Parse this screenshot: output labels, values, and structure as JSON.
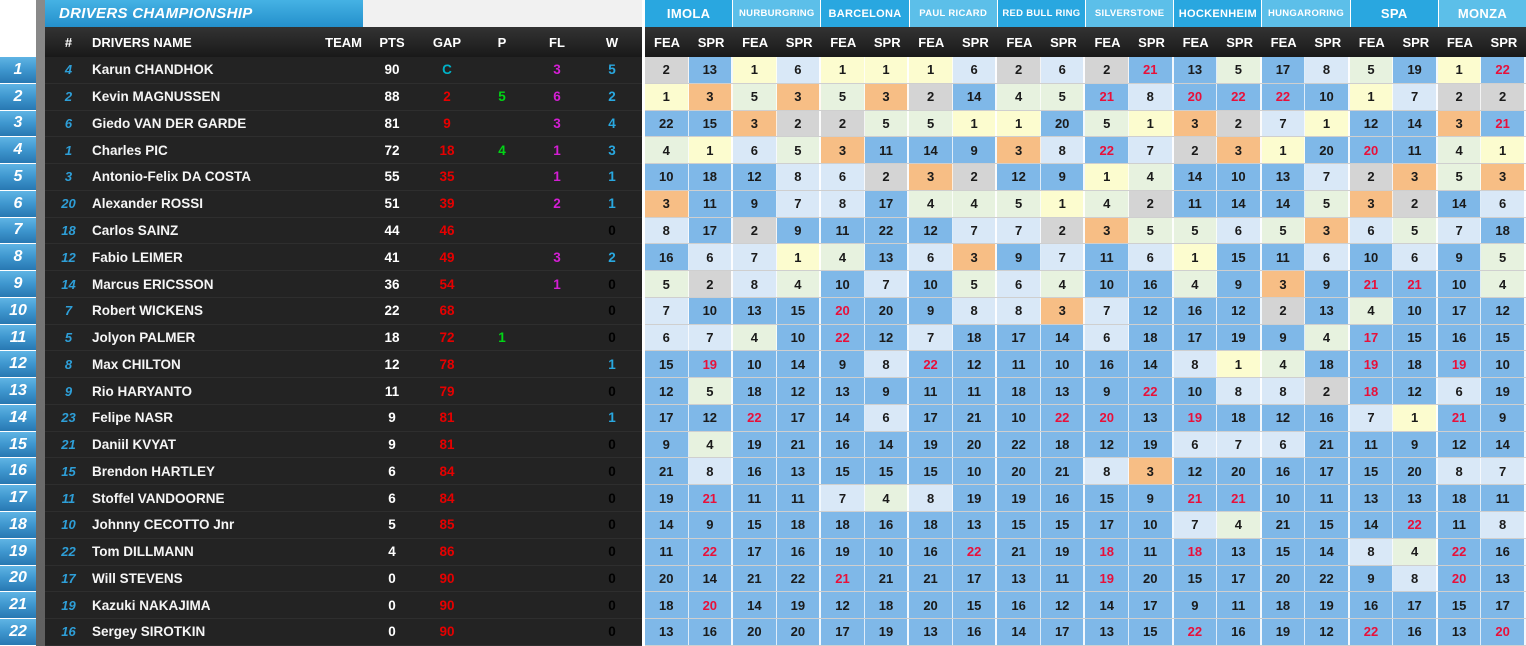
{
  "left_table": {
    "title": "DRIVERS CHAMPIONSHIP",
    "columns": [
      "#",
      "DRIVERS NAME",
      "TEAM",
      "PTS",
      "GAP",
      "P",
      "FL",
      "W"
    ],
    "leader_marker": "C",
    "rows": [
      {
        "pos": "1",
        "num": "4",
        "name": "Karun CHANDHOK",
        "team": "",
        "pts": "90",
        "gap": "C",
        "p": "",
        "fl": "3",
        "w": "5"
      },
      {
        "pos": "2",
        "num": "2",
        "name": "Kevin MAGNUSSEN",
        "team": "",
        "pts": "88",
        "gap": "2",
        "p": "5",
        "fl": "6",
        "w": "2"
      },
      {
        "pos": "3",
        "num": "6",
        "name": "Giedo VAN DER GARDE",
        "team": "",
        "pts": "81",
        "gap": "9",
        "p": "",
        "fl": "3",
        "w": "4"
      },
      {
        "pos": "4",
        "num": "1",
        "name": "Charles PIC",
        "team": "",
        "pts": "72",
        "gap": "18",
        "p": "4",
        "fl": "1",
        "w": "3"
      },
      {
        "pos": "5",
        "num": "3",
        "name": "Antonio-Felix DA COSTA",
        "team": "",
        "pts": "55",
        "gap": "35",
        "p": "",
        "fl": "1",
        "w": "1"
      },
      {
        "pos": "6",
        "num": "20",
        "name": "Alexander ROSSI",
        "team": "",
        "pts": "51",
        "gap": "39",
        "p": "",
        "fl": "2",
        "w": "1"
      },
      {
        "pos": "7",
        "num": "18",
        "name": "Carlos SAINZ",
        "team": "",
        "pts": "44",
        "gap": "46",
        "p": "",
        "fl": "",
        "w": "0"
      },
      {
        "pos": "8",
        "num": "12",
        "name": "Fabio LEIMER",
        "team": "",
        "pts": "41",
        "gap": "49",
        "p": "",
        "fl": "3",
        "w": "2"
      },
      {
        "pos": "9",
        "num": "14",
        "name": "Marcus ERICSSON",
        "team": "",
        "pts": "36",
        "gap": "54",
        "p": "",
        "fl": "1",
        "w": "0"
      },
      {
        "pos": "10",
        "num": "7",
        "name": "Robert WICKENS",
        "team": "",
        "pts": "22",
        "gap": "68",
        "p": "",
        "fl": "",
        "w": "0"
      },
      {
        "pos": "11",
        "num": "5",
        "name": "Jolyon PALMER",
        "team": "",
        "pts": "18",
        "gap": "72",
        "p": "1",
        "fl": "",
        "w": "0"
      },
      {
        "pos": "12",
        "num": "8",
        "name": "Max CHILTON",
        "team": "",
        "pts": "12",
        "gap": "78",
        "p": "",
        "fl": "",
        "w": "1"
      },
      {
        "pos": "13",
        "num": "9",
        "name": "Rio HARYANTO",
        "team": "",
        "pts": "11",
        "gap": "79",
        "p": "",
        "fl": "",
        "w": "0"
      },
      {
        "pos": "14",
        "num": "23",
        "name": "Felipe NASR",
        "team": "",
        "pts": "9",
        "gap": "81",
        "p": "",
        "fl": "",
        "w": "1"
      },
      {
        "pos": "15",
        "num": "21",
        "name": "Daniil KVYAT",
        "team": "",
        "pts": "9",
        "gap": "81",
        "p": "",
        "fl": "",
        "w": "0"
      },
      {
        "pos": "16",
        "num": "15",
        "name": "Brendon HARTLEY",
        "team": "",
        "pts": "6",
        "gap": "84",
        "p": "",
        "fl": "",
        "w": "0"
      },
      {
        "pos": "17",
        "num": "11",
        "name": "Stoffel VANDOORNE",
        "team": "",
        "pts": "6",
        "gap": "84",
        "p": "",
        "fl": "",
        "w": "0"
      },
      {
        "pos": "18",
        "num": "10",
        "name": "Johnny CECOTTO Jnr",
        "team": "",
        "pts": "5",
        "gap": "85",
        "p": "",
        "fl": "",
        "w": "0"
      },
      {
        "pos": "19",
        "num": "22",
        "name": "Tom DILLMANN",
        "team": "",
        "pts": "4",
        "gap": "86",
        "p": "",
        "fl": "",
        "w": "0"
      },
      {
        "pos": "20",
        "num": "17",
        "name": "Will STEVENS",
        "team": "",
        "pts": "0",
        "gap": "90",
        "p": "",
        "fl": "",
        "w": "0"
      },
      {
        "pos": "21",
        "num": "19",
        "name": "Kazuki NAKAJIMA",
        "team": "",
        "pts": "0",
        "gap": "90",
        "p": "",
        "fl": "",
        "w": "0"
      },
      {
        "pos": "22",
        "num": "16",
        "name": "Sergey SIROTKIN",
        "team": "",
        "pts": "0",
        "gap": "90",
        "p": "",
        "fl": "",
        "w": "0"
      }
    ]
  },
  "results_grid": {
    "circuits": [
      "IMOLA",
      "NURBURGRING",
      "BARCELONA",
      "PAUL RICARD",
      "RED BULL RING",
      "SILVERSTONE",
      "HOCKENHEIM",
      "HUNGARORING",
      "SPA",
      "MONZA"
    ],
    "session_labels": [
      "FEA",
      "SPR"
    ],
    "red_suffix_note": "r = result shown in red (retirement/DNF)",
    "results": [
      [
        "2",
        "13",
        "1",
        "6",
        "1",
        "1",
        "1",
        "6",
        "2",
        "6",
        "2",
        "21r",
        "13",
        "5",
        "17",
        "8",
        "5",
        "19",
        "1",
        "22r"
      ],
      [
        "1",
        "3",
        "5",
        "3",
        "5",
        "3",
        "2",
        "14",
        "4",
        "5",
        "21r",
        "8",
        "20r",
        "22r",
        "22r",
        "10",
        "1",
        "7",
        "2",
        "2"
      ],
      [
        "22",
        "15",
        "3",
        "2",
        "2",
        "5",
        "5",
        "1",
        "1",
        "20",
        "5",
        "1",
        "3",
        "2",
        "7",
        "1",
        "12",
        "14",
        "3",
        "21r"
      ],
      [
        "4",
        "1",
        "6",
        "5",
        "3",
        "11",
        "14",
        "9",
        "3",
        "8",
        "22r",
        "7",
        "2",
        "3",
        "1",
        "20",
        "20r",
        "11",
        "4",
        "1"
      ],
      [
        "10",
        "18",
        "12",
        "8",
        "6",
        "2",
        "3",
        "2",
        "12",
        "9",
        "1",
        "4",
        "14",
        "10",
        "13",
        "7",
        "2",
        "3",
        "5",
        "3"
      ],
      [
        "3",
        "11",
        "9",
        "7",
        "8",
        "17",
        "4",
        "4",
        "5",
        "1",
        "4",
        "2",
        "11",
        "14",
        "14",
        "5",
        "3",
        "2",
        "14",
        "6"
      ],
      [
        "8",
        "17",
        "2",
        "9",
        "11",
        "22",
        "12",
        "7",
        "7",
        "2",
        "3",
        "5",
        "5",
        "6",
        "5",
        "3",
        "6",
        "5",
        "7",
        "18"
      ],
      [
        "16",
        "6",
        "7",
        "1",
        "4",
        "13",
        "6",
        "3",
        "9",
        "7",
        "11",
        "6",
        "1",
        "15",
        "11",
        "6",
        "10",
        "6",
        "9",
        "5"
      ],
      [
        "5",
        "2",
        "8",
        "4",
        "10",
        "7",
        "10",
        "5",
        "6",
        "4",
        "10",
        "16",
        "4",
        "9",
        "3",
        "9",
        "21r",
        "21r",
        "10",
        "4"
      ],
      [
        "7",
        "10",
        "13",
        "15",
        "20r",
        "20",
        "9",
        "8",
        "8",
        "3",
        "7",
        "12",
        "16",
        "12",
        "2",
        "13",
        "4",
        "10",
        "17",
        "12"
      ],
      [
        "6",
        "7",
        "4",
        "10",
        "22r",
        "12",
        "7",
        "18",
        "17",
        "14",
        "6",
        "18",
        "17",
        "19",
        "9",
        "4",
        "17r",
        "15",
        "16",
        "15"
      ],
      [
        "15",
        "19r",
        "10",
        "14",
        "9",
        "8",
        "22r",
        "12",
        "11",
        "10",
        "16",
        "14",
        "8",
        "1",
        "4",
        "18",
        "19r",
        "18",
        "19r",
        "10"
      ],
      [
        "12",
        "5",
        "18",
        "12",
        "13",
        "9",
        "11",
        "11",
        "18",
        "13",
        "9",
        "22r",
        "10",
        "8",
        "8",
        "2",
        "18r",
        "12",
        "6",
        "19"
      ],
      [
        "17",
        "12",
        "22r",
        "17",
        "14",
        "6",
        "17",
        "21",
        "10",
        "22r",
        "20r",
        "13",
        "19r",
        "18",
        "12",
        "16",
        "7",
        "1",
        "21r",
        "9"
      ],
      [
        "9",
        "4",
        "19",
        "21",
        "16",
        "14",
        "19",
        "20",
        "22",
        "18",
        "12",
        "19",
        "6",
        "7",
        "6",
        "21",
        "11",
        "9",
        "12",
        "14"
      ],
      [
        "21",
        "8",
        "16",
        "13",
        "15",
        "15",
        "15",
        "10",
        "20",
        "21",
        "8",
        "3",
        "12",
        "20",
        "16",
        "17",
        "15",
        "20",
        "8",
        "7"
      ],
      [
        "19",
        "21r",
        "11",
        "11",
        "7",
        "4",
        "8",
        "19",
        "19",
        "16",
        "15",
        "9",
        "21r",
        "21r",
        "10",
        "11",
        "13",
        "13",
        "18",
        "11"
      ],
      [
        "14",
        "9",
        "15",
        "18",
        "18",
        "16",
        "18",
        "13",
        "15",
        "15",
        "17",
        "10",
        "7",
        "4",
        "21",
        "15",
        "14",
        "22r",
        "11",
        "8"
      ],
      [
        "11",
        "22r",
        "17",
        "16",
        "19",
        "10",
        "16",
        "22r",
        "21",
        "19",
        "18r",
        "11",
        "18r",
        "13",
        "15",
        "14",
        "8",
        "4",
        "22r",
        "16"
      ],
      [
        "20",
        "14",
        "21",
        "22",
        "21r",
        "21",
        "21",
        "17",
        "13",
        "11",
        "19r",
        "20",
        "15",
        "17",
        "20",
        "22",
        "9",
        "8",
        "20r",
        "13"
      ],
      [
        "18",
        "20r",
        "14",
        "19",
        "12",
        "18",
        "20",
        "15",
        "16",
        "12",
        "14",
        "17",
        "9",
        "11",
        "18",
        "19",
        "16",
        "17",
        "15",
        "17"
      ],
      [
        "13",
        "16",
        "20",
        "20",
        "17",
        "19",
        "13",
        "16",
        "14",
        "17",
        "13",
        "15",
        "22r",
        "16",
        "19",
        "12",
        "22r",
        "16",
        "13",
        "20r"
      ]
    ]
  },
  "colors": {
    "accent_blue": "#2e9fd8",
    "circuit_dark": "#29a7e0",
    "circuit_light": "#5cbfe9",
    "gap_red": "#e60000",
    "leader_cyan": "#00b2c8",
    "pole_green": "#00d515",
    "fastlap_magenta": "#d41ed4",
    "wins_blue": "#29a8e0",
    "wins_zero": "#000000",
    "cell_p1": "#fcfccf",
    "cell_p2": "#d4d4d4",
    "cell_p3": "#f7be85",
    "cell_p4_5": "#e7f2df",
    "cell_p6_8": "#d9e8f7",
    "cell_p9_plus": "#7fb8e8",
    "dnf_text": "#e8103a"
  }
}
